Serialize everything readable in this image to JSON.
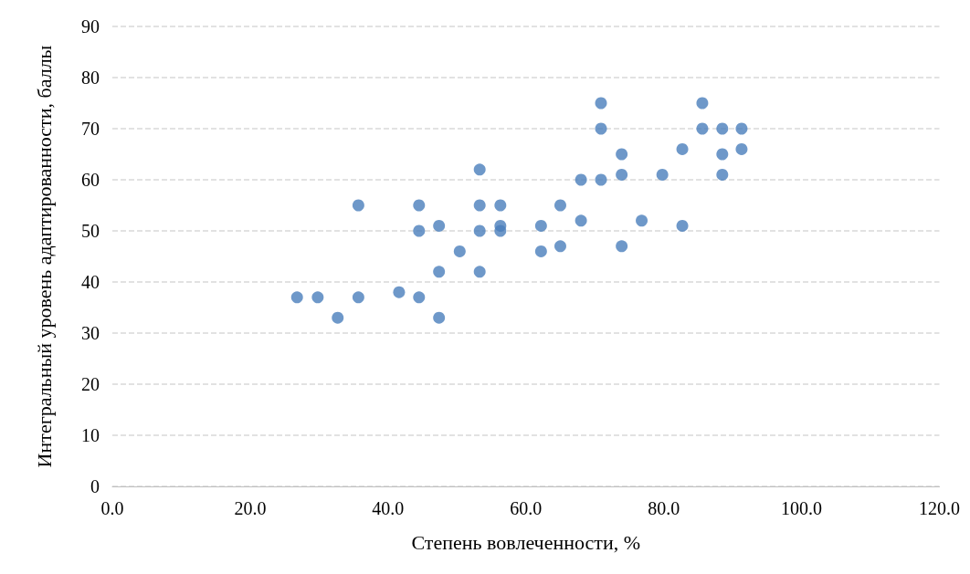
{
  "chart_data": {
    "type": "scatter",
    "xlabel": "Степень вовлеченности, %",
    "ylabel": "Интегральный уровень адаптированности, баллы",
    "x": [
      26.8,
      29.8,
      32.7,
      35.7,
      35.7,
      41.6,
      44.5,
      44.5,
      44.5,
      47.4,
      47.4,
      47.4,
      50.4,
      53.3,
      53.3,
      53.3,
      53.3,
      56.3,
      56.3,
      56.3,
      62.2,
      62.2,
      65.0,
      65.0,
      68.0,
      68.0,
      70.9,
      70.9,
      70.9,
      73.9,
      73.9,
      73.9,
      76.8,
      79.8,
      82.7,
      82.7,
      85.6,
      85.6,
      88.5,
      88.5,
      88.5,
      91.3,
      91.3
    ],
    "values": [
      37,
      37,
      33,
      37,
      55,
      38,
      37,
      50,
      55,
      33,
      42,
      51,
      46,
      42,
      50,
      55,
      62,
      50,
      51,
      55,
      46,
      51,
      47,
      55,
      52,
      60,
      60,
      70,
      75,
      47,
      61,
      65,
      52,
      61,
      51,
      66,
      70,
      75,
      61,
      65,
      70,
      66,
      70
    ],
    "color": "#4a7ebb",
    "marker": "circle",
    "xlim": [
      0,
      120
    ],
    "xticks": [
      {
        "value": 0,
        "label": "0.0"
      },
      {
        "value": 20,
        "label": "20.0"
      },
      {
        "value": 40,
        "label": "40.0"
      },
      {
        "value": 60,
        "label": "60.0"
      },
      {
        "value": 80,
        "label": "80.0"
      },
      {
        "value": 100,
        "label": "100.0"
      },
      {
        "value": 120,
        "label": "120.0"
      }
    ],
    "ylim": [
      0,
      90
    ],
    "yticks": [
      0,
      10,
      20,
      30,
      40,
      50,
      60,
      70,
      80,
      90
    ],
    "grid": "y",
    "line_style": "dashed"
  }
}
